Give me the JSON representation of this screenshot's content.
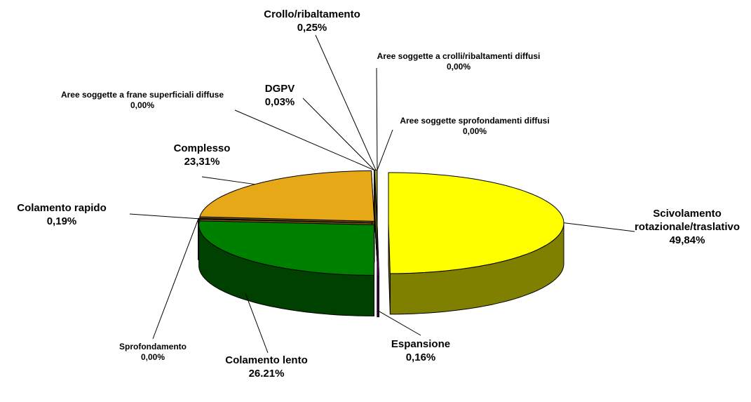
{
  "chart_data": {
    "type": "pie3d",
    "categories": [
      "Scivolamento rotazionale/traslativo",
      "Espansione",
      "Colamento lento",
      "Sprofondamento",
      "Colamento rapido",
      "Complesso",
      "Aree soggette a frane superficiali diffuse",
      "DGPV",
      "Crollo/ribaltamento",
      "Aree soggette a crolli/ribaltamenti diffusi",
      "Aree soggette sprofondamenti diffusi"
    ],
    "values": [
      49.84,
      0.16,
      26.21,
      0,
      0.19,
      23.31,
      0,
      0.03,
      0.25,
      0,
      0
    ],
    "value_labels": [
      "49,84%",
      "0,16%",
      "26.21%",
      "0,00%",
      "0,19%",
      "23,31%",
      "0,00%",
      "0,03%",
      "0,25%",
      "0,00%",
      "0,00%"
    ],
    "colors": [
      "#ffff00",
      "#800080",
      "#008000",
      "#c0c0c0",
      "#808080",
      "#e6a817",
      "#ffcc99",
      "#99cc00",
      "#999933",
      "#cccc00",
      "#ff9900"
    ]
  }
}
